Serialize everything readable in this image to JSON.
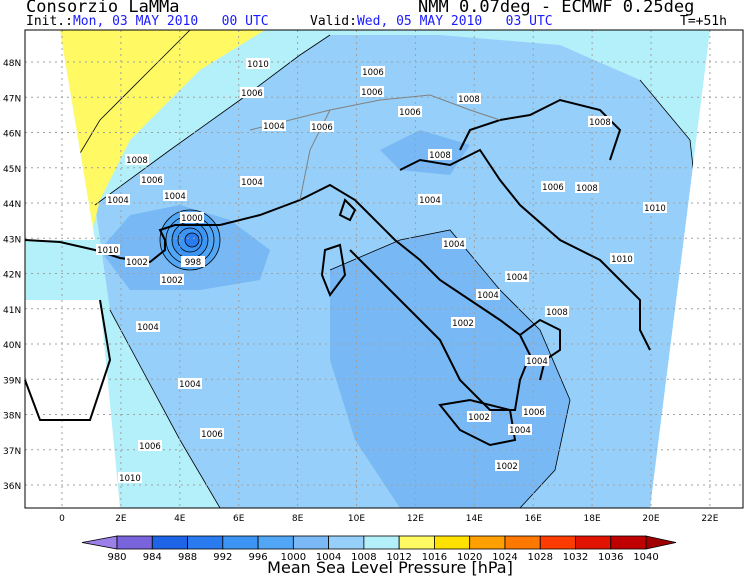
{
  "header": {
    "org": "Consorzio LaMMa",
    "model": "NMM 0.07deg - ECMWF 0.25deg",
    "init_label": "Init.:",
    "init_value": "Mon, 03 MAY 2010   00 UTC",
    "valid_label": "Valid:",
    "valid_value": "Wed, 05 MAY 2010   03 UTC",
    "lead_time": "T=+51h"
  },
  "map": {
    "lat_labels": [
      "48N",
      "47N",
      "46N",
      "45N",
      "44N",
      "43N",
      "42N",
      "41N",
      "40N",
      "39N",
      "38N",
      "37N",
      "36N"
    ],
    "lon_labels": [
      "0",
      "2E",
      "4E",
      "6E",
      "8E",
      "10E",
      "12E",
      "14E",
      "16E",
      "18E",
      "20E",
      "22E"
    ],
    "contour_labels": [
      "1010",
      "1006",
      "1008",
      "1008",
      "1004",
      "1006",
      "1006",
      "1008",
      "1004",
      "1006",
      "1008",
      "1006",
      "1004",
      "1004",
      "1000",
      "998",
      "1002",
      "1002",
      "1010",
      "1004",
      "1004",
      "1004",
      "1004",
      "1002",
      "1004",
      "1004",
      "1006",
      "1008",
      "1006",
      "1010",
      "1010",
      "1002",
      "1004",
      "1006",
      "1008",
      "1010",
      "1002",
      "1004",
      "1006",
      "1006"
    ],
    "colors": {
      "land_outline": "#000000",
      "border": "#808080",
      "grid": "#a0a0a0"
    }
  },
  "colorbar": {
    "title": "Mean Sea Level Pressure [hPa]",
    "ticks": [
      "980",
      "984",
      "988",
      "992",
      "996",
      "1000",
      "1004",
      "1008",
      "1012",
      "1016",
      "1020",
      "1024",
      "1028",
      "1032",
      "1036",
      "1040"
    ],
    "colors": [
      "#9a80e8",
      "#7a64dc",
      "#1e64e6",
      "#2a7af0",
      "#3c94f4",
      "#52a6f6",
      "#7ab9f6",
      "#96d0fa",
      "#b4f0fa",
      "#fffa64",
      "#ffe100",
      "#ffa000",
      "#ff7800",
      "#ff3c00",
      "#e01400",
      "#c00000",
      "#a00000"
    ]
  }
}
